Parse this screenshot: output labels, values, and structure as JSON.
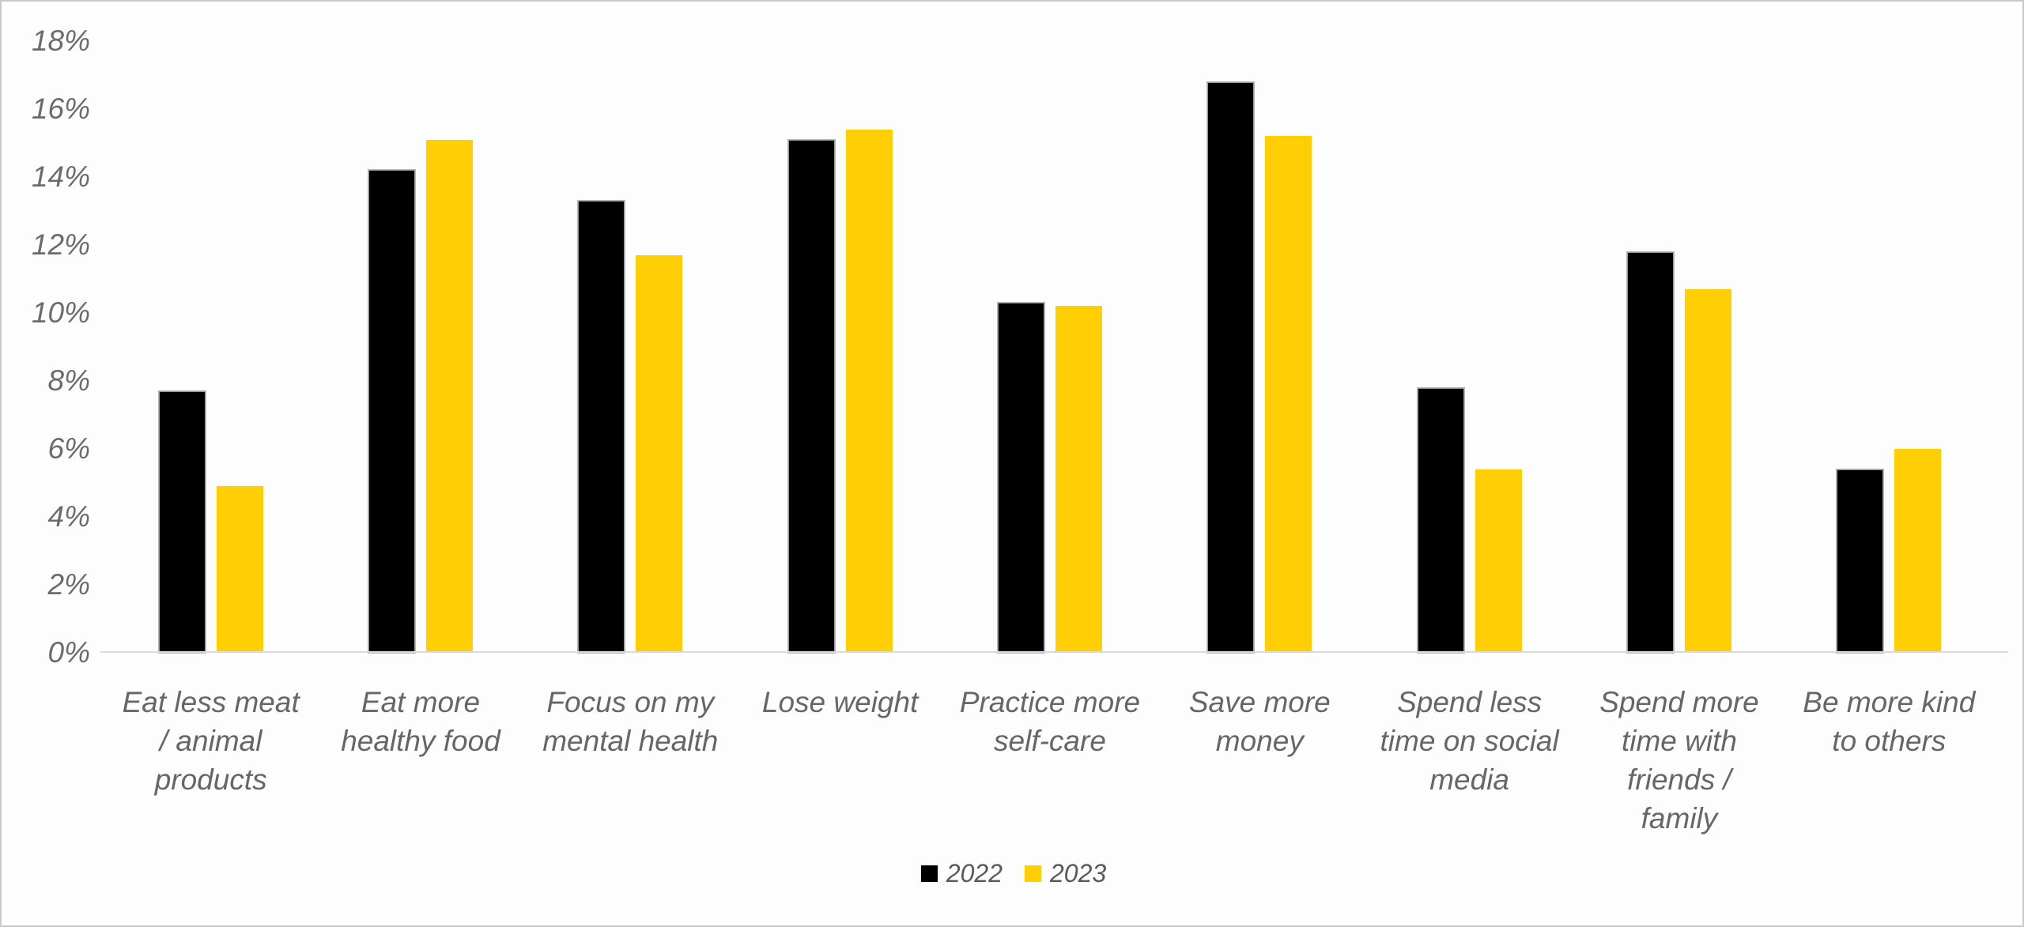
{
  "chart_data": {
    "type": "bar",
    "title": "",
    "xlabel": "",
    "ylabel": "",
    "categories": [
      "Eat less meat\n/ animal\nproducts",
      "Eat more\nhealthy food",
      "Focus on my\nmental health",
      "Lose weight",
      "Practice more\nself-care",
      "Save more\nmoney",
      "Spend less\ntime on social\nmedia",
      "Spend more\ntime with\nfriends /\nfamily",
      "Be more kind\nto others"
    ],
    "series": [
      {
        "name": "2022",
        "color": "#000000",
        "values": [
          7.7,
          14.2,
          13.3,
          15.1,
          10.3,
          16.8,
          7.8,
          11.8,
          5.4
        ]
      },
      {
        "name": "2023",
        "color": "#FFCE04",
        "values": [
          4.9,
          15.1,
          11.7,
          15.4,
          10.2,
          15.2,
          5.4,
          10.7,
          6.0
        ]
      }
    ],
    "y_axis": {
      "min": 0,
      "max": 18,
      "step": 2,
      "unit": "%",
      "tick_labels": [
        "0%",
        "2%",
        "4%",
        "6%",
        "8%",
        "10%",
        "12%",
        "14%",
        "16%",
        "18%"
      ]
    },
    "legend_position": "bottom-center",
    "grid": "off"
  },
  "colors": {
    "series_2022": "#000000",
    "series_2023": "#FFCE04",
    "axis_text": "#6b6b6b",
    "axis_line": "#D9D9D9",
    "chart_border": "#C9C9C9",
    "background": "#FDFDFD"
  }
}
